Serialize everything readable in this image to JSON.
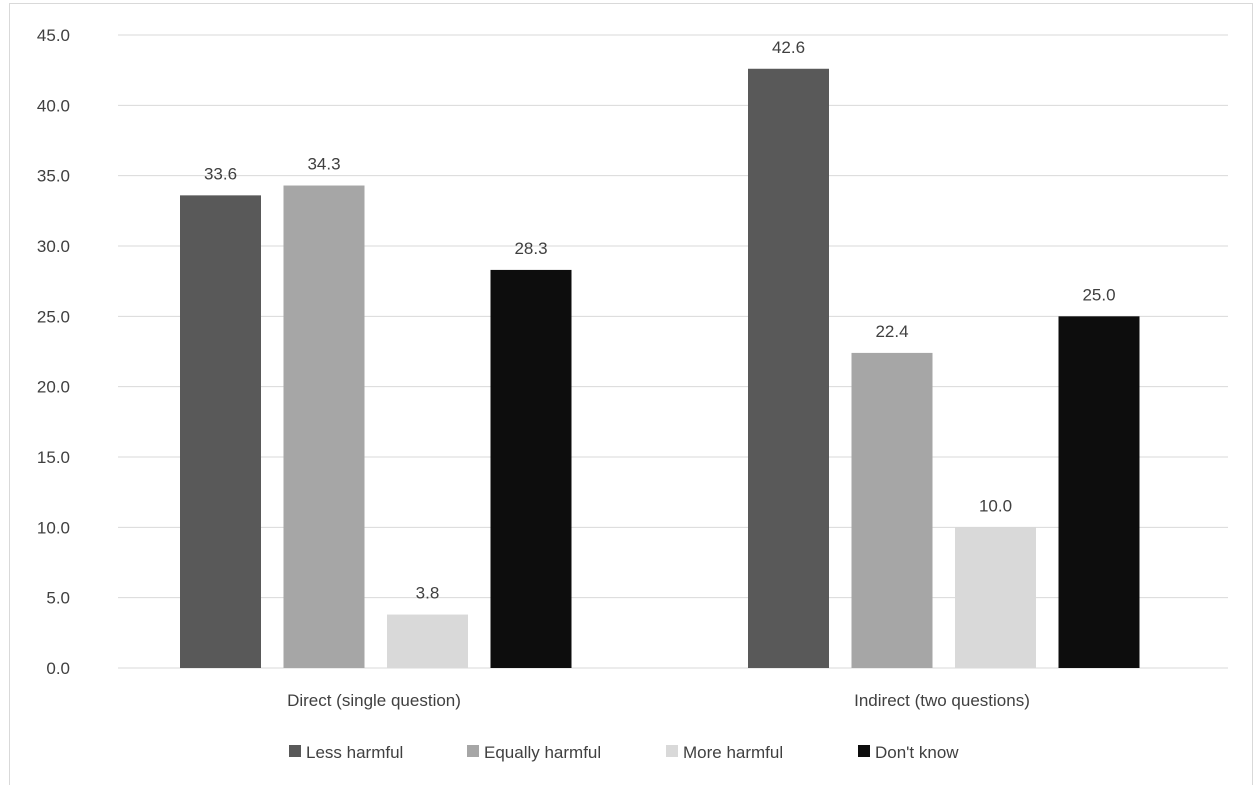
{
  "chart_data": {
    "type": "bar",
    "title": "",
    "xlabel": "",
    "ylabel": "",
    "categories": [
      "Direct (single question)",
      "Indirect (two questions)"
    ],
    "series": [
      {
        "name": "Less harmful",
        "values": [
          33.6,
          42.6
        ],
        "color": "#595959"
      },
      {
        "name": "Equally harmful",
        "values": [
          34.3,
          22.4
        ],
        "color": "#a6a6a6"
      },
      {
        "name": "More harmful",
        "values": [
          3.8,
          10.0
        ],
        "color": "#d9d9d9"
      },
      {
        "name": "Don't know",
        "values": [
          28.3,
          25.0
        ],
        "color": "#0d0d0d"
      }
    ],
    "value_labels": [
      [
        "33.6",
        "42.6"
      ],
      [
        "34.3",
        "22.4"
      ],
      [
        "3.8",
        "10.0"
      ],
      [
        "28.3",
        "25.0"
      ]
    ],
    "ylim": [
      0,
      45
    ],
    "yticks": [
      "0.0",
      "5.0",
      "10.0",
      "15.0",
      "20.0",
      "25.0",
      "30.0",
      "35.0",
      "40.0",
      "45.0"
    ],
    "ytick_values": [
      0,
      5,
      10,
      15,
      20,
      25,
      30,
      35,
      40,
      45
    ],
    "grid": true,
    "gridline_color": "#d9d9d9",
    "legend_position": "bottom"
  }
}
